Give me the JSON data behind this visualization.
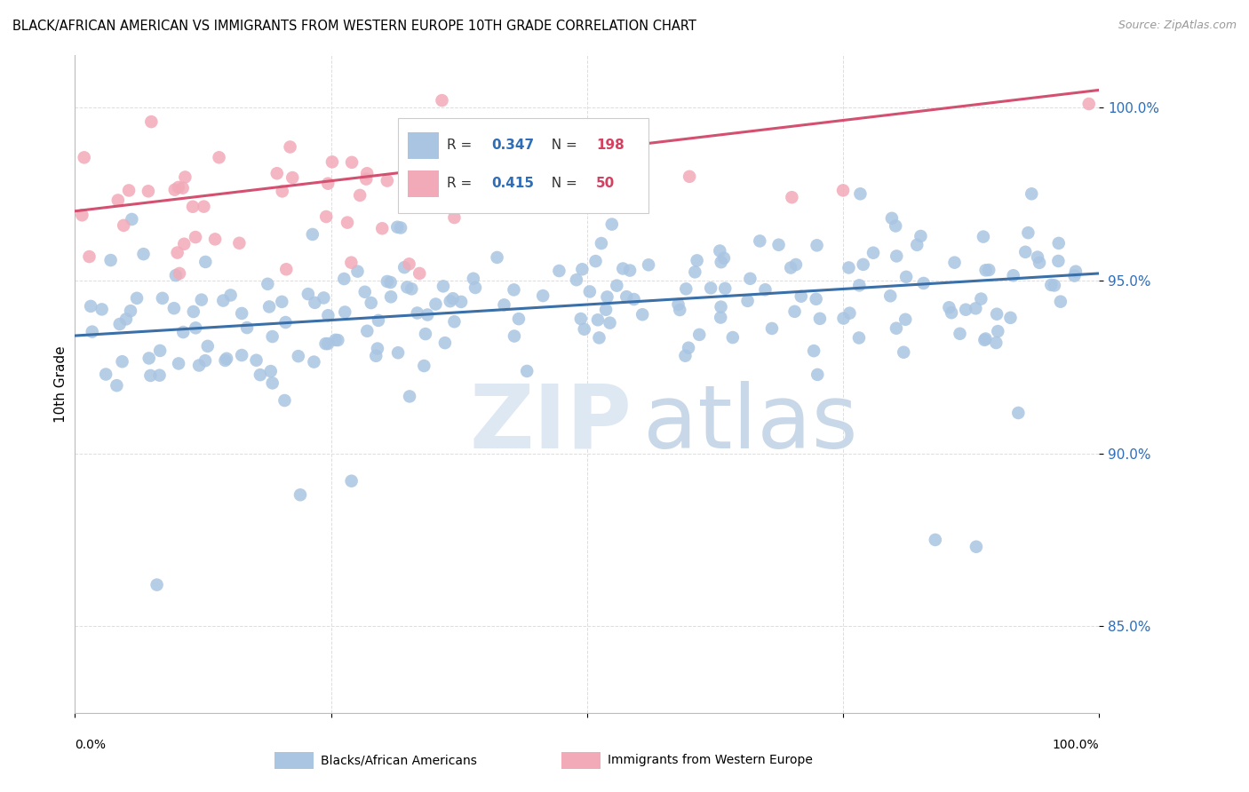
{
  "title": "BLACK/AFRICAN AMERICAN VS IMMIGRANTS FROM WESTERN EUROPE 10TH GRADE CORRELATION CHART",
  "source": "Source: ZipAtlas.com",
  "ylabel": "10th Grade",
  "yticks_labels": [
    "85.0%",
    "90.0%",
    "95.0%",
    "100.0%"
  ],
  "ytick_vals": [
    0.85,
    0.9,
    0.95,
    1.0
  ],
  "xlim": [
    0.0,
    1.0
  ],
  "ylim": [
    0.825,
    1.015
  ],
  "blue_R": 0.347,
  "blue_N": 198,
  "pink_R": 0.415,
  "pink_N": 50,
  "blue_dot_color": "#aac5e2",
  "pink_dot_color": "#f2aab8",
  "blue_line_color": "#3a6fa8",
  "pink_line_color": "#d45070",
  "legend_label_blue": "Blacks/African Americans",
  "legend_label_pink": "Immigrants from Western Europe",
  "blue_line_x0": 0.0,
  "blue_line_y0": 0.934,
  "blue_line_x1": 1.0,
  "blue_line_y1": 0.952,
  "pink_line_x0": 0.0,
  "pink_line_y0": 0.97,
  "pink_line_x1": 1.0,
  "pink_line_y1": 1.005,
  "seed": 42
}
